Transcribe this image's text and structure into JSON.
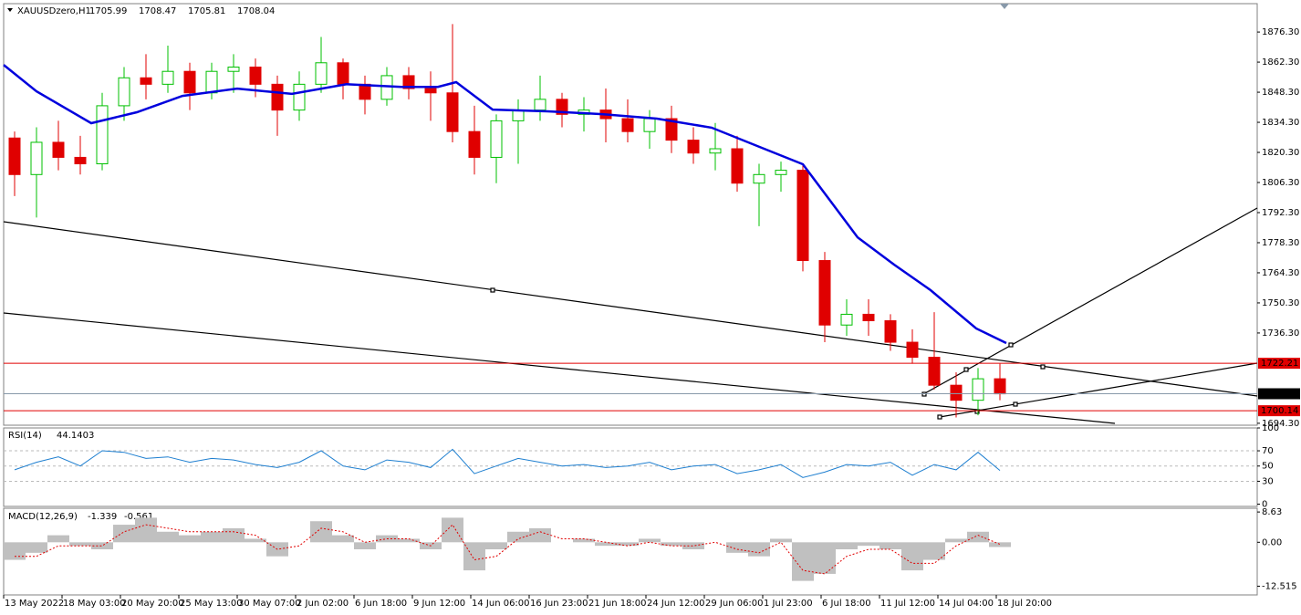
{
  "chart_data": [
    {
      "type": "candlestick",
      "title": "XAUUSDzero,H1",
      "last_ohlc": [
        1705.99,
        1708.47,
        1705.81,
        1708.04
      ],
      "up_color": "#00c000",
      "down_color": "#e00000",
      "x": [
        12,
        36,
        60,
        84,
        108,
        132,
        156,
        180,
        204,
        228,
        252,
        276,
        300,
        324,
        348,
        372,
        396,
        420,
        444,
        468,
        492,
        516,
        540,
        564,
        588,
        612,
        636,
        660,
        684,
        708,
        732,
        756,
        780,
        804,
        828,
        852,
        876,
        900,
        924,
        948,
        972,
        996,
        1020,
        1044,
        1068,
        1092
      ],
      "open": [
        1827,
        1810,
        1825,
        1818,
        1815,
        1842,
        1855,
        1852,
        1858,
        1848,
        1858,
        1860,
        1852,
        1840,
        1852,
        1862,
        1852,
        1845,
        1856,
        1850,
        1848,
        1830,
        1818,
        1835,
        1840,
        1845,
        1838,
        1840,
        1836,
        1830,
        1836,
        1826,
        1820,
        1822,
        1806,
        1810,
        1812,
        1770,
        1740,
        1745,
        1742,
        1732,
        1725,
        1712,
        1705,
        1715
      ],
      "high": [
        1830,
        1832,
        1835,
        1828,
        1848,
        1860,
        1866,
        1870,
        1862,
        1862,
        1866,
        1864,
        1856,
        1858,
        1874,
        1864,
        1856,
        1860,
        1860,
        1858,
        1880,
        1842,
        1838,
        1845,
        1856,
        1848,
        1846,
        1850,
        1845,
        1840,
        1842,
        1832,
        1834,
        1828,
        1815,
        1816,
        1815,
        1774,
        1752,
        1752,
        1745,
        1738,
        1746,
        1718,
        1720,
        1722
      ],
      "low": [
        1800,
        1790,
        1812,
        1810,
        1812,
        1835,
        1845,
        1848,
        1840,
        1845,
        1848,
        1846,
        1828,
        1835,
        1848,
        1845,
        1838,
        1842,
        1845,
        1835,
        1825,
        1810,
        1806,
        1815,
        1835,
        1832,
        1830,
        1825,
        1825,
        1822,
        1820,
        1815,
        1812,
        1802,
        1786,
        1802,
        1765,
        1732,
        1735,
        1735,
        1728,
        1722,
        1710,
        1697,
        1698,
        1705
      ],
      "close": [
        1810,
        1825,
        1818,
        1815,
        1842,
        1855,
        1852,
        1858,
        1848,
        1858,
        1860,
        1852,
        1840,
        1852,
        1862,
        1852,
        1845,
        1856,
        1850,
        1848,
        1830,
        1818,
        1835,
        1840,
        1845,
        1838,
        1840,
        1836,
        1830,
        1836,
        1826,
        1820,
        1822,
        1806,
        1810,
        1812,
        1770,
        1740,
        1745,
        1742,
        1732,
        1725,
        1712,
        1705,
        1715,
        1708
      ],
      "ma": {
        "color": "#0000dd",
        "x": [
          0,
          36,
          96,
          146,
          196,
          256,
          316,
          376,
          436,
          476,
          496,
          536,
          596,
          656,
          716,
          776,
          826,
          876,
          906,
          936,
          976,
          1016,
          1066,
          1099
        ],
        "values": [
          1861,
          1848.7,
          1833.9,
          1839,
          1846.6,
          1850,
          1847.5,
          1852,
          1850.8,
          1850.8,
          1853,
          1840.2,
          1839.4,
          1838.1,
          1836,
          1831.8,
          1823.3,
          1814.8,
          1797.8,
          1780.8,
          1768.1,
          1756.2,
          1738.4,
          1731.6
        ]
      },
      "hlines": [
        {
          "value": 1722.21,
          "color": "#e00000"
        },
        {
          "value": 1708.04,
          "color": "#8899aa"
        },
        {
          "value": 1700.14,
          "color": "#e00000"
        }
      ],
      "xlim": [
        0,
        1374
      ],
      "ylim": [
        1693.4,
        1889.5
      ],
      "yticks": [
        {
          "value": 1876.3,
          "label": "1876.30"
        },
        {
          "value": 1862.3,
          "label": "1862.30"
        },
        {
          "value": 1848.3,
          "label": "1848.30"
        },
        {
          "value": 1834.3,
          "label": "1834.30"
        },
        {
          "value": 1820.3,
          "label": "1820.30"
        },
        {
          "value": 1806.3,
          "label": "1806.30"
        },
        {
          "value": 1792.3,
          "label": "1792.30"
        },
        {
          "value": 1778.3,
          "label": "1778.30"
        },
        {
          "value": 1764.3,
          "label": "1764.30"
        },
        {
          "value": 1750.3,
          "label": "1750.30"
        },
        {
          "value": 1736.3,
          "label": "1736.30"
        },
        {
          "value": 1694.3,
          "label": "1694.30"
        }
      ],
      "xticks": [
        {
          "value": 0,
          "label": "13 May 2022"
        },
        {
          "value": 64,
          "label": "18 May 03:00"
        },
        {
          "value": 128,
          "label": "20 May 20:00"
        },
        {
          "value": 192,
          "label": "25 May 13:00"
        },
        {
          "value": 256,
          "label": "30 May 07:00"
        },
        {
          "value": 320,
          "label": "2 Jun 02:00"
        },
        {
          "value": 384,
          "label": "6 Jun 18:00"
        },
        {
          "value": 448,
          "label": "9 Jun 12:00"
        },
        {
          "value": 512,
          "label": "14 Jun 06:00"
        },
        {
          "value": 576,
          "label": "16 Jun 23:00"
        },
        {
          "value": 640,
          "label": "21 Jun 18:00"
        },
        {
          "value": 704,
          "label": "24 Jun 12:00"
        },
        {
          "value": 768,
          "label": "29 Jun 06:00"
        },
        {
          "value": 832,
          "label": "1 Jul 23:00"
        },
        {
          "value": 896,
          "label": "6 Jul 18:00"
        },
        {
          "value": 960,
          "label": "11 Jul 12:00"
        },
        {
          "value": 1024,
          "label": "14 Jul 04:00"
        },
        {
          "value": 1088,
          "label": "18 Jul 20:00"
        }
      ]
    },
    {
      "type": "line",
      "title": "RSI(14)",
      "color": "#1e7fd0",
      "x": [
        12,
        36,
        60,
        84,
        108,
        132,
        156,
        180,
        204,
        228,
        252,
        276,
        300,
        324,
        348,
        372,
        396,
        420,
        444,
        468,
        492,
        516,
        540,
        564,
        588,
        612,
        636,
        660,
        684,
        708,
        732,
        756,
        780,
        804,
        828,
        852,
        876,
        900,
        924,
        948,
        972,
        996,
        1020,
        1044,
        1068,
        1092
      ],
      "values": [
        45,
        55,
        62,
        50,
        70,
        68,
        60,
        62,
        55,
        60,
        58,
        52,
        48,
        55,
        70,
        50,
        45,
        58,
        55,
        48,
        72,
        40,
        50,
        60,
        55,
        50,
        52,
        48,
        50,
        55,
        45,
        50,
        52,
        40,
        45,
        52,
        35,
        42,
        52,
        50,
        55,
        38,
        52,
        45,
        68,
        44.1403
      ],
      "levels": [
        30,
        50,
        70
      ],
      "ylim": [
        -3,
        100
      ],
      "yticks": [
        0,
        30,
        50,
        70,
        100
      ]
    },
    {
      "type": "macd",
      "title": "MACD(12,26,9)",
      "color": "#c0c0c0",
      "signal_color": "#e00000",
      "x": [
        12,
        36,
        60,
        84,
        108,
        132,
        156,
        180,
        204,
        228,
        252,
        276,
        300,
        324,
        348,
        372,
        396,
        420,
        444,
        468,
        492,
        516,
        540,
        564,
        588,
        612,
        636,
        660,
        684,
        708,
        732,
        756,
        780,
        804,
        828,
        852,
        876,
        900,
        924,
        948,
        972,
        996,
        1020,
        1044,
        1068,
        1092
      ],
      "values": [
        -5,
        -3,
        2,
        -1,
        -2,
        5,
        7,
        3,
        2,
        3,
        4,
        1,
        -4,
        0,
        6,
        2,
        -2,
        2,
        1,
        -2,
        7,
        -8,
        -2,
        3,
        4,
        0,
        1,
        -1,
        -1,
        1,
        -1,
        -2,
        0,
        -3,
        -4,
        1,
        -11,
        -9,
        -2,
        -1,
        -2,
        -8,
        -5,
        1,
        3,
        -1.339
      ],
      "signal": [
        -4,
        -4,
        -1,
        -1,
        -1,
        3,
        5,
        4,
        3,
        3,
        3,
        2,
        -2,
        -1,
        4,
        3,
        0,
        1,
        1,
        -1,
        5,
        -5,
        -4,
        1,
        3,
        1,
        1,
        0,
        -1,
        0,
        -1,
        -1,
        0,
        -2,
        -3,
        0,
        -8,
        -9,
        -4,
        -2,
        -2,
        -6,
        -6,
        -1,
        2,
        -0.561
      ],
      "ylim": [
        -15,
        9.7
      ],
      "yticks": [
        8.63,
        {
          "value": 0,
          "label": "0.00"
        },
        -12.515
      ]
    }
  ]
}
